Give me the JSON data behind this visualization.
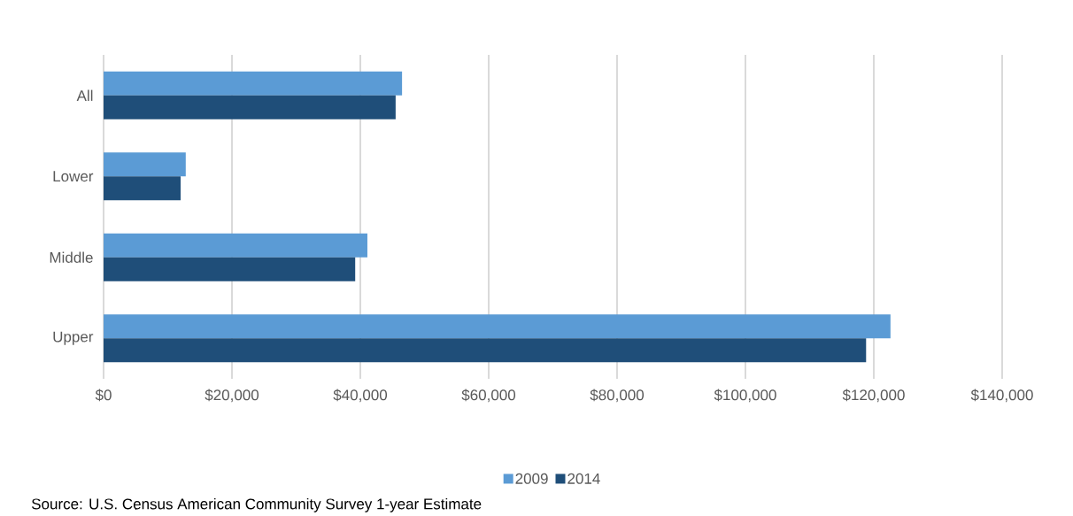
{
  "chart_data": {
    "type": "bar",
    "orientation": "horizontal",
    "categories": [
      "All",
      "Lower",
      "Middle",
      "Upper"
    ],
    "series": [
      {
        "name": "2009",
        "color": "#5b9bd5",
        "values": [
          46500,
          12800,
          41100,
          122600
        ]
      },
      {
        "name": "2014",
        "color": "#1f4e79",
        "values": [
          45500,
          12000,
          39200,
          118800
        ]
      }
    ],
    "xlim": [
      0,
      140000
    ],
    "xticks": [
      {
        "value": 0,
        "label": "$0"
      },
      {
        "value": 20000,
        "label": "$20,000"
      },
      {
        "value": 40000,
        "label": "$40,000"
      },
      {
        "value": 60000,
        "label": "$60,000"
      },
      {
        "value": 80000,
        "label": "$80,000"
      },
      {
        "value": 100000,
        "label": "$100,000"
      },
      {
        "value": 120000,
        "label": "$120,000"
      },
      {
        "value": 140000,
        "label": "$140,000"
      }
    ],
    "grid": "x",
    "legend": "bottom",
    "annotations": [
      "Source: U.S. Census American Community Survey 1-year Estimate"
    ]
  }
}
